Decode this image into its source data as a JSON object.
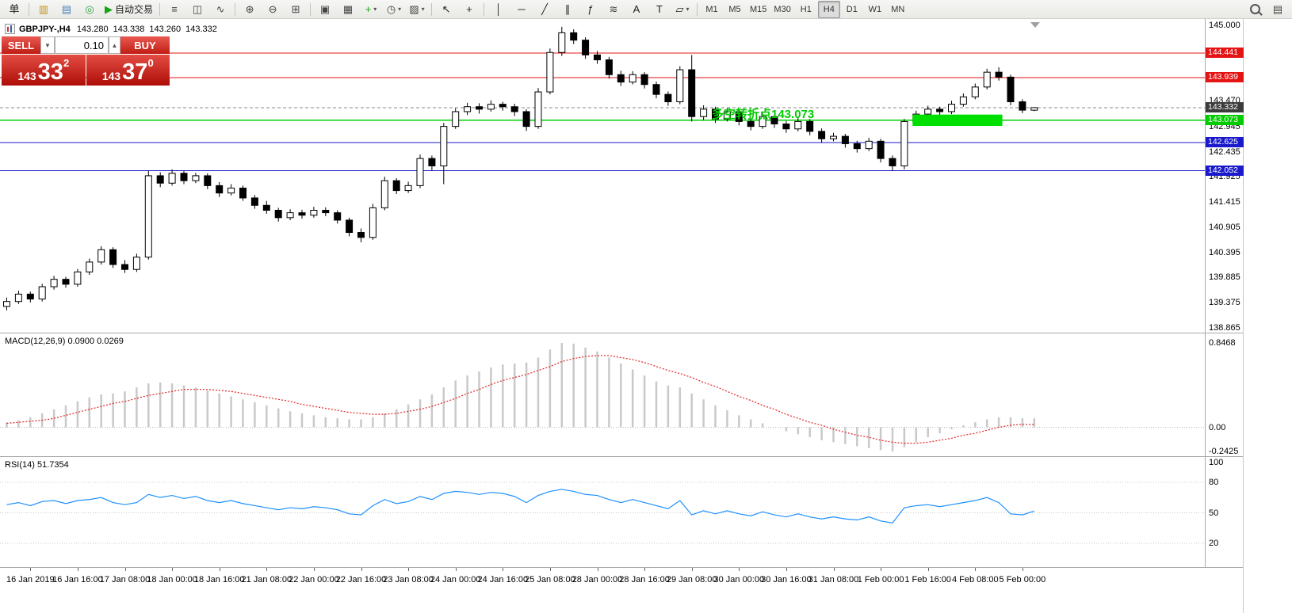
{
  "toolbar": {
    "items": [
      {
        "name": "new-order-button",
        "glyph": "单",
        "gcolor": "#222"
      },
      {
        "sep": true
      },
      {
        "name": "new-chart-button",
        "glyph": "▥",
        "gcolor": "#c79114"
      },
      {
        "name": "profiles-button",
        "glyph": "▤",
        "gcolor": "#4a7ebb"
      },
      {
        "name": "refresh-button",
        "glyph": "◎",
        "gcolor": "#2f9e44"
      },
      {
        "name": "autotrading-button",
        "glyph": "▶",
        "gcolor": "#17a317",
        "label": "自动交易"
      },
      {
        "sep": true
      },
      {
        "name": "bar-chart-button",
        "glyph": "≡",
        "gcolor": "#444"
      },
      {
        "name": "candlestick-chart-button",
        "glyph": "◫",
        "gcolor": "#444"
      },
      {
        "name": "line-chart-button",
        "glyph": "∿",
        "gcolor": "#444"
      },
      {
        "sep": true
      },
      {
        "name": "zoom-in-button",
        "glyph": "⊕",
        "gcolor": "#444"
      },
      {
        "name": "zoom-out-button",
        "glyph": "⊖",
        "gcolor": "#444"
      },
      {
        "name": "tile-windows-button",
        "glyph": "⊞",
        "gcolor": "#444"
      },
      {
        "sep": true
      },
      {
        "name": "cascade-windows-button",
        "glyph": "▣",
        "gcolor": "#444"
      },
      {
        "name": "arrange-windows-button",
        "glyph": "▦",
        "gcolor": "#444"
      },
      {
        "name": "indicators-button",
        "glyph": "+",
        "gcolor": "#17a317",
        "dropdown": true
      },
      {
        "name": "periods-button",
        "glyph": "◷",
        "gcolor": "#444",
        "dropdown": true
      },
      {
        "name": "templates-button",
        "glyph": "▨",
        "gcolor": "#444",
        "dropdown": true
      },
      {
        "sep": true
      },
      {
        "name": "cursor-button",
        "glyph": "↖",
        "gcolor": "#222"
      },
      {
        "name": "crosshair-button",
        "glyph": "+",
        "gcolor": "#222"
      },
      {
        "sep": true
      },
      {
        "name": "vertical-line-button",
        "glyph": "│",
        "gcolor": "#222"
      },
      {
        "name": "horizontal-line-button",
        "glyph": "─",
        "gcolor": "#222"
      },
      {
        "name": "trendline-button",
        "glyph": "╱",
        "gcolor": "#222"
      },
      {
        "name": "channel-button",
        "glyph": "∥",
        "gcolor": "#222"
      },
      {
        "name": "fibonacci-button",
        "glyph": "ƒ",
        "gcolor": "#222"
      },
      {
        "name": "cycle-lines-button",
        "glyph": "≋",
        "gcolor": "#444"
      },
      {
        "name": "text-button",
        "glyph": "A",
        "gcolor": "#222"
      },
      {
        "name": "label-button",
        "glyph": "T",
        "gcolor": "#222"
      },
      {
        "name": "shapes-button",
        "glyph": "▱",
        "gcolor": "#222",
        "dropdown": true
      },
      {
        "sep": true
      },
      {
        "name": "timeframe-m1-button",
        "label": "M1",
        "tf": true
      },
      {
        "name": "timeframe-m5-button",
        "label": "M5",
        "tf": true
      },
      {
        "name": "timeframe-m15-button",
        "label": "M15",
        "tf": true
      },
      {
        "name": "timeframe-m30-button",
        "label": "M30",
        "tf": true
      },
      {
        "name": "timeframe-h1-button",
        "label": "H1",
        "tf": true
      },
      {
        "name": "timeframe-h4-button",
        "label": "H4",
        "tf": true,
        "active": true
      },
      {
        "name": "timeframe-d1-button",
        "label": "D1",
        "tf": true
      },
      {
        "name": "timeframe-w1-button",
        "label": "W1",
        "tf": true
      },
      {
        "name": "timeframe-mn-button",
        "label": "MN",
        "tf": true
      },
      {
        "spacer": true
      },
      {
        "name": "search-button",
        "mag": true
      },
      {
        "name": "windows-list-button",
        "glyph": "▤",
        "gcolor": "#444"
      }
    ]
  },
  "quote_header": {
    "symbol": "GBPJPY-,H4",
    "open": "143.280",
    "high": "143.338",
    "low": "143.260",
    "close": "143.332"
  },
  "trade_panel": {
    "sell_label": "SELL",
    "buy_label": "BUY",
    "lot": "0.10",
    "down_glyph": "▼",
    "up_glyph": "▲",
    "sell_price": {
      "prefix": "143",
      "big": "33",
      "sup": "2"
    },
    "buy_price": {
      "prefix": "143",
      "big": "37",
      "sup": "0"
    }
  },
  "chart_data": {
    "type": "candlestick",
    "symbol": "GBPJPY",
    "timeframe": "H4",
    "price_axis": {
      "max": 145.0,
      "min": 138.865,
      "ticks": [
        145.0,
        143.47,
        142.945,
        142.435,
        141.925,
        141.415,
        140.905,
        140.395,
        139.885,
        139.375,
        138.865
      ]
    },
    "time_label_start_index": 2,
    "time_label_step": 4,
    "time_labels": [
      "16 Jan 2019",
      "16 Jan 16:00",
      "17 Jan 08:00",
      "18 Jan 00:00",
      "18 Jan 16:00",
      "21 Jan 08:00",
      "22 Jan 00:00",
      "22 Jan 16:00",
      "23 Jan 08:00",
      "24 Jan 00:00",
      "24 Jan 16:00",
      "25 Jan 08:00",
      "28 Jan 00:00",
      "28 Jan 16:00",
      "29 Jan 08:00",
      "30 Jan 00:00",
      "30 Jan 16:00",
      "31 Jan 08:00",
      "1 Feb 00:00",
      "1 Feb 16:00",
      "4 Feb 08:00",
      "5 Feb 00:00"
    ],
    "candles": [
      [
        139.3,
        139.48,
        139.22,
        139.4
      ],
      [
        139.4,
        139.62,
        139.35,
        139.55
      ],
      [
        139.55,
        139.6,
        139.38,
        139.45
      ],
      [
        139.45,
        139.76,
        139.4,
        139.7
      ],
      [
        139.7,
        139.92,
        139.64,
        139.85
      ],
      [
        139.85,
        139.9,
        139.68,
        139.75
      ],
      [
        139.75,
        140.06,
        139.7,
        140.0
      ],
      [
        140.0,
        140.27,
        139.94,
        140.2
      ],
      [
        140.2,
        140.52,
        140.15,
        140.45
      ],
      [
        140.45,
        140.5,
        140.08,
        140.15
      ],
      [
        140.15,
        140.24,
        139.98,
        140.05
      ],
      [
        140.05,
        140.37,
        140.0,
        140.3
      ],
      [
        140.3,
        142.05,
        140.25,
        141.95
      ],
      [
        141.95,
        142.02,
        141.72,
        141.8
      ],
      [
        141.8,
        142.08,
        141.75,
        142.0
      ],
      [
        142.0,
        142.05,
        141.78,
        141.85
      ],
      [
        141.85,
        142.01,
        141.8,
        141.95
      ],
      [
        141.95,
        142.0,
        141.68,
        141.75
      ],
      [
        141.75,
        141.82,
        141.52,
        141.6
      ],
      [
        141.6,
        141.78,
        141.55,
        141.7
      ],
      [
        141.7,
        141.75,
        141.44,
        141.5
      ],
      [
        141.5,
        141.56,
        141.28,
        141.35
      ],
      [
        141.35,
        141.44,
        141.18,
        141.25
      ],
      [
        141.25,
        141.3,
        141.02,
        141.1
      ],
      [
        141.1,
        141.27,
        141.05,
        141.2
      ],
      [
        141.2,
        141.26,
        141.08,
        141.15
      ],
      [
        141.15,
        141.32,
        141.1,
        141.25
      ],
      [
        141.25,
        141.31,
        141.13,
        141.2
      ],
      [
        141.2,
        141.25,
        140.98,
        141.05
      ],
      [
        141.05,
        141.1,
        140.72,
        140.8
      ],
      [
        140.8,
        140.88,
        140.6,
        140.7
      ],
      [
        140.7,
        141.38,
        140.65,
        141.3
      ],
      [
        141.3,
        141.93,
        141.25,
        141.85
      ],
      [
        141.85,
        141.9,
        141.58,
        141.65
      ],
      [
        141.65,
        141.83,
        141.6,
        141.75
      ],
      [
        141.75,
        142.38,
        141.7,
        142.3
      ],
      [
        142.3,
        142.36,
        142.06,
        142.15
      ],
      [
        142.15,
        143.02,
        141.78,
        142.95
      ],
      [
        142.95,
        143.32,
        142.9,
        143.25
      ],
      [
        143.25,
        143.43,
        143.18,
        143.35
      ],
      [
        143.35,
        143.42,
        143.21,
        143.3
      ],
      [
        143.3,
        143.48,
        143.25,
        143.4
      ],
      [
        143.4,
        143.45,
        143.27,
        143.35
      ],
      [
        143.35,
        143.41,
        143.16,
        143.25
      ],
      [
        143.25,
        143.3,
        142.86,
        142.95
      ],
      [
        142.95,
        143.73,
        142.9,
        143.65
      ],
      [
        143.65,
        144.53,
        143.6,
        144.45
      ],
      [
        144.45,
        144.97,
        144.38,
        144.85
      ],
      [
        144.85,
        144.92,
        144.62,
        144.7
      ],
      [
        144.7,
        144.76,
        144.32,
        144.4
      ],
      [
        144.4,
        144.48,
        144.22,
        144.3
      ],
      [
        144.3,
        144.36,
        143.92,
        144.0
      ],
      [
        144.0,
        144.08,
        143.77,
        143.85
      ],
      [
        143.85,
        144.07,
        143.8,
        144.0
      ],
      [
        144.0,
        144.05,
        143.72,
        143.8
      ],
      [
        143.8,
        143.86,
        143.52,
        143.6
      ],
      [
        143.6,
        143.66,
        143.37,
        143.45
      ],
      [
        143.45,
        144.17,
        143.4,
        144.1
      ],
      [
        144.1,
        144.4,
        143.05,
        143.15
      ],
      [
        143.15,
        143.38,
        143.08,
        143.3
      ],
      [
        143.3,
        143.35,
        143.02,
        143.1
      ],
      [
        143.1,
        143.32,
        143.05,
        143.25
      ],
      [
        143.25,
        143.3,
        142.97,
        143.05
      ],
      [
        143.05,
        143.11,
        142.87,
        142.95
      ],
      [
        142.95,
        143.22,
        142.9,
        143.15
      ],
      [
        143.15,
        143.2,
        142.92,
        143.0
      ],
      [
        143.0,
        143.06,
        142.82,
        142.9
      ],
      [
        142.9,
        143.12,
        142.85,
        143.05
      ],
      [
        143.05,
        143.1,
        142.77,
        142.85
      ],
      [
        142.85,
        142.91,
        142.62,
        142.7
      ],
      [
        142.7,
        142.82,
        142.65,
        142.75
      ],
      [
        142.75,
        142.8,
        142.52,
        142.6
      ],
      [
        142.6,
        142.66,
        142.42,
        142.5
      ],
      [
        142.5,
        142.72,
        142.45,
        142.65
      ],
      [
        142.65,
        142.7,
        142.22,
        142.3
      ],
      [
        142.3,
        142.36,
        142.05,
        142.15
      ],
      [
        142.15,
        143.1,
        142.08,
        143.05
      ],
      [
        143.05,
        143.27,
        143.0,
        143.2
      ],
      [
        143.2,
        143.37,
        143.15,
        143.3
      ],
      [
        143.3,
        143.35,
        143.17,
        143.25
      ],
      [
        143.25,
        143.47,
        143.2,
        143.4
      ],
      [
        143.4,
        143.62,
        143.35,
        143.55
      ],
      [
        143.55,
        143.82,
        143.5,
        143.75
      ],
      [
        143.75,
        144.12,
        143.7,
        144.05
      ],
      [
        144.05,
        144.15,
        143.88,
        143.95
      ],
      [
        143.95,
        144.0,
        143.38,
        143.45
      ],
      [
        143.45,
        143.5,
        143.22,
        143.28
      ],
      [
        143.28,
        143.338,
        143.26,
        143.332
      ]
    ],
    "hlines": [
      {
        "price": 144.441,
        "label": "144.441",
        "color": "#e41414",
        "width": 1
      },
      {
        "price": 143.939,
        "label": "143.939",
        "color": "#e41414",
        "width": 1
      },
      {
        "price": 143.073,
        "label": "143.073",
        "color": "#00cc00",
        "width": 1.5
      },
      {
        "price": 142.625,
        "label": "142.625",
        "color": "#1a1acc",
        "width": 1.2
      },
      {
        "price": 142.052,
        "label": "142.052",
        "color": "#1a1acc",
        "width": 1.2
      }
    ],
    "current_price": {
      "value": 143.332,
      "label": "143.332",
      "box_color": "#3c3c3c",
      "line_color": "#888888"
    },
    "highlight_rect": {
      "from_index": 77,
      "to_index": 84,
      "price_top": 143.19,
      "price_bottom": 142.96,
      "color": "#00e000"
    },
    "annotation": {
      "text": "多空转折点143.073",
      "color": "#00cc00",
      "index": 60,
      "price": 143.12
    },
    "indicators": [
      {
        "name": "MACD",
        "label": "MACD(12,26,9) 0.0900 0.0269",
        "max": 0.8468,
        "min": -0.2425,
        "max_label": "0.8468",
        "zero_label": "0.00",
        "min_label": "-0.2425",
        "histogram_color": "#c9c9c9",
        "signal_color": "#e42222",
        "histogram": [
          0.05,
          0.07,
          0.1,
          0.14,
          0.18,
          0.22,
          0.26,
          0.3,
          0.33,
          0.34,
          0.36,
          0.4,
          0.44,
          0.45,
          0.44,
          0.42,
          0.4,
          0.37,
          0.34,
          0.31,
          0.28,
          0.25,
          0.22,
          0.19,
          0.16,
          0.14,
          0.12,
          0.1,
          0.09,
          0.08,
          0.08,
          0.1,
          0.14,
          0.18,
          0.23,
          0.28,
          0.33,
          0.4,
          0.47,
          0.52,
          0.56,
          0.6,
          0.63,
          0.64,
          0.65,
          0.7,
          0.78,
          0.8468,
          0.84,
          0.8,
          0.76,
          0.7,
          0.64,
          0.58,
          0.52,
          0.46,
          0.42,
          0.4,
          0.34,
          0.28,
          0.22,
          0.17,
          0.12,
          0.08,
          0.04,
          0.0,
          -0.04,
          -0.07,
          -0.1,
          -0.13,
          -0.15,
          -0.17,
          -0.19,
          -0.21,
          -0.23,
          -0.2425,
          -0.2,
          -0.15,
          -0.1,
          -0.06,
          -0.02,
          0.02,
          0.05,
          0.08,
          0.1,
          0.1,
          0.09,
          0.09
        ],
        "signal": [
          0.04,
          0.05,
          0.06,
          0.07,
          0.09,
          0.12,
          0.15,
          0.18,
          0.21,
          0.24,
          0.26,
          0.29,
          0.32,
          0.34,
          0.36,
          0.38,
          0.38,
          0.38,
          0.37,
          0.36,
          0.34,
          0.32,
          0.3,
          0.28,
          0.26,
          0.23,
          0.21,
          0.19,
          0.17,
          0.15,
          0.14,
          0.13,
          0.13,
          0.14,
          0.16,
          0.18,
          0.21,
          0.25,
          0.29,
          0.34,
          0.38,
          0.43,
          0.47,
          0.5,
          0.53,
          0.57,
          0.61,
          0.66,
          0.69,
          0.71,
          0.72,
          0.72,
          0.7,
          0.68,
          0.65,
          0.61,
          0.57,
          0.54,
          0.5,
          0.45,
          0.41,
          0.36,
          0.31,
          0.27,
          0.22,
          0.18,
          0.13,
          0.09,
          0.05,
          0.02,
          -0.02,
          -0.05,
          -0.08,
          -0.1,
          -0.13,
          -0.15,
          -0.16,
          -0.16,
          -0.15,
          -0.13,
          -0.11,
          -0.08,
          -0.06,
          -0.03,
          0.0,
          0.02,
          0.03,
          0.0269
        ]
      },
      {
        "name": "RSI",
        "label": "RSI(14) 51.7354",
        "max": 100,
        "min": 0,
        "levels": [
          80,
          50,
          20
        ],
        "axis_labels": [
          {
            "v": 100,
            "t": "100"
          },
          {
            "v": 80,
            "t": "80"
          },
          {
            "v": 50,
            "t": "50"
          },
          {
            "v": 20,
            "t": "20"
          }
        ],
        "line_color": "#1E90FF",
        "values": [
          58,
          60,
          57,
          61,
          62,
          59,
          62,
          63,
          65,
          60,
          58,
          60,
          68,
          65,
          67,
          64,
          66,
          62,
          60,
          62,
          59,
          57,
          55,
          53,
          55,
          54,
          56,
          55,
          53,
          49,
          48,
          57,
          63,
          59,
          61,
          66,
          63,
          69,
          71,
          70,
          68,
          70,
          69,
          66,
          60,
          67,
          71,
          73,
          71,
          68,
          67,
          63,
          60,
          63,
          60,
          57,
          54,
          62,
          48,
          52,
          49,
          52,
          49,
          47,
          51,
          48,
          46,
          49,
          46,
          44,
          46,
          44,
          43,
          46,
          42,
          40,
          55,
          57,
          58,
          56,
          58,
          60,
          62,
          65,
          60,
          49,
          48,
          51.7354
        ]
      }
    ]
  }
}
